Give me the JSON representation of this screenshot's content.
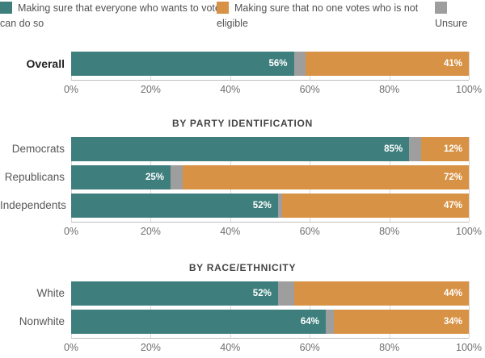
{
  "legend": {
    "items": [
      {
        "label": "Making sure that everyone who wants to vote can do so",
        "color": "#3E7F7D",
        "series": "everyone"
      },
      {
        "label": "Making sure that no one votes who is not eligible",
        "color": "#D89245",
        "series": "ineligible"
      },
      {
        "label": "Unsure",
        "color": "#9E9E9E",
        "series": "unsure"
      }
    ]
  },
  "chart_data": {
    "type": "bar",
    "stacked": true,
    "orientation": "horizontal",
    "unit": "percent",
    "xlim": [
      0,
      100
    ],
    "x_ticks": [
      "0%",
      "20%",
      "40%",
      "60%",
      "80%",
      "100%"
    ],
    "grid": true,
    "legend_position": "top",
    "colors": {
      "everyone": "#3E7F7D",
      "unsure": "#9E9E9E",
      "ineligible": "#D89245"
    },
    "series_order": [
      "everyone",
      "unsure",
      "ineligible"
    ],
    "series_names": {
      "everyone": "Making sure that everyone who wants to vote can do so",
      "unsure": "Unsure",
      "ineligible": "Making sure that no one votes who is not eligible"
    },
    "sections": [
      {
        "title": "",
        "rows": [
          {
            "label": "Overall",
            "bold": true,
            "segments": [
              {
                "name": "everyone",
                "value": 56,
                "text": "56%"
              },
              {
                "name": "unsure",
                "value": 3,
                "text": ""
              },
              {
                "name": "ineligible",
                "value": 41,
                "text": "41%"
              }
            ]
          }
        ]
      },
      {
        "title": "BY PARTY IDENTIFICATION",
        "rows": [
          {
            "label": "Democrats",
            "bold": false,
            "segments": [
              {
                "name": "everyone",
                "value": 85,
                "text": "85%"
              },
              {
                "name": "unsure",
                "value": 3,
                "text": ""
              },
              {
                "name": "ineligible",
                "value": 12,
                "text": "12%"
              }
            ]
          },
          {
            "label": "Republicans",
            "bold": false,
            "segments": [
              {
                "name": "everyone",
                "value": 25,
                "text": "25%"
              },
              {
                "name": "unsure",
                "value": 3,
                "text": ""
              },
              {
                "name": "ineligible",
                "value": 72,
                "text": "72%"
              }
            ]
          },
          {
            "label": "Independents",
            "bold": false,
            "segments": [
              {
                "name": "everyone",
                "value": 52,
                "text": "52%"
              },
              {
                "name": "unsure",
                "value": 1,
                "text": ""
              },
              {
                "name": "ineligible",
                "value": 47,
                "text": "47%"
              }
            ]
          }
        ]
      },
      {
        "title": "BY RACE/ETHNICITY",
        "rows": [
          {
            "label": "White",
            "bold": false,
            "segments": [
              {
                "name": "everyone",
                "value": 52,
                "text": "52%"
              },
              {
                "name": "unsure",
                "value": 4,
                "text": ""
              },
              {
                "name": "ineligible",
                "value": 44,
                "text": "44%"
              }
            ]
          },
          {
            "label": "Nonwhite",
            "bold": false,
            "segments": [
              {
                "name": "everyone",
                "value": 64,
                "text": "64%"
              },
              {
                "name": "unsure",
                "value": 2,
                "text": ""
              },
              {
                "name": "ineligible",
                "value": 34,
                "text": "34%"
              }
            ]
          }
        ]
      }
    ]
  }
}
